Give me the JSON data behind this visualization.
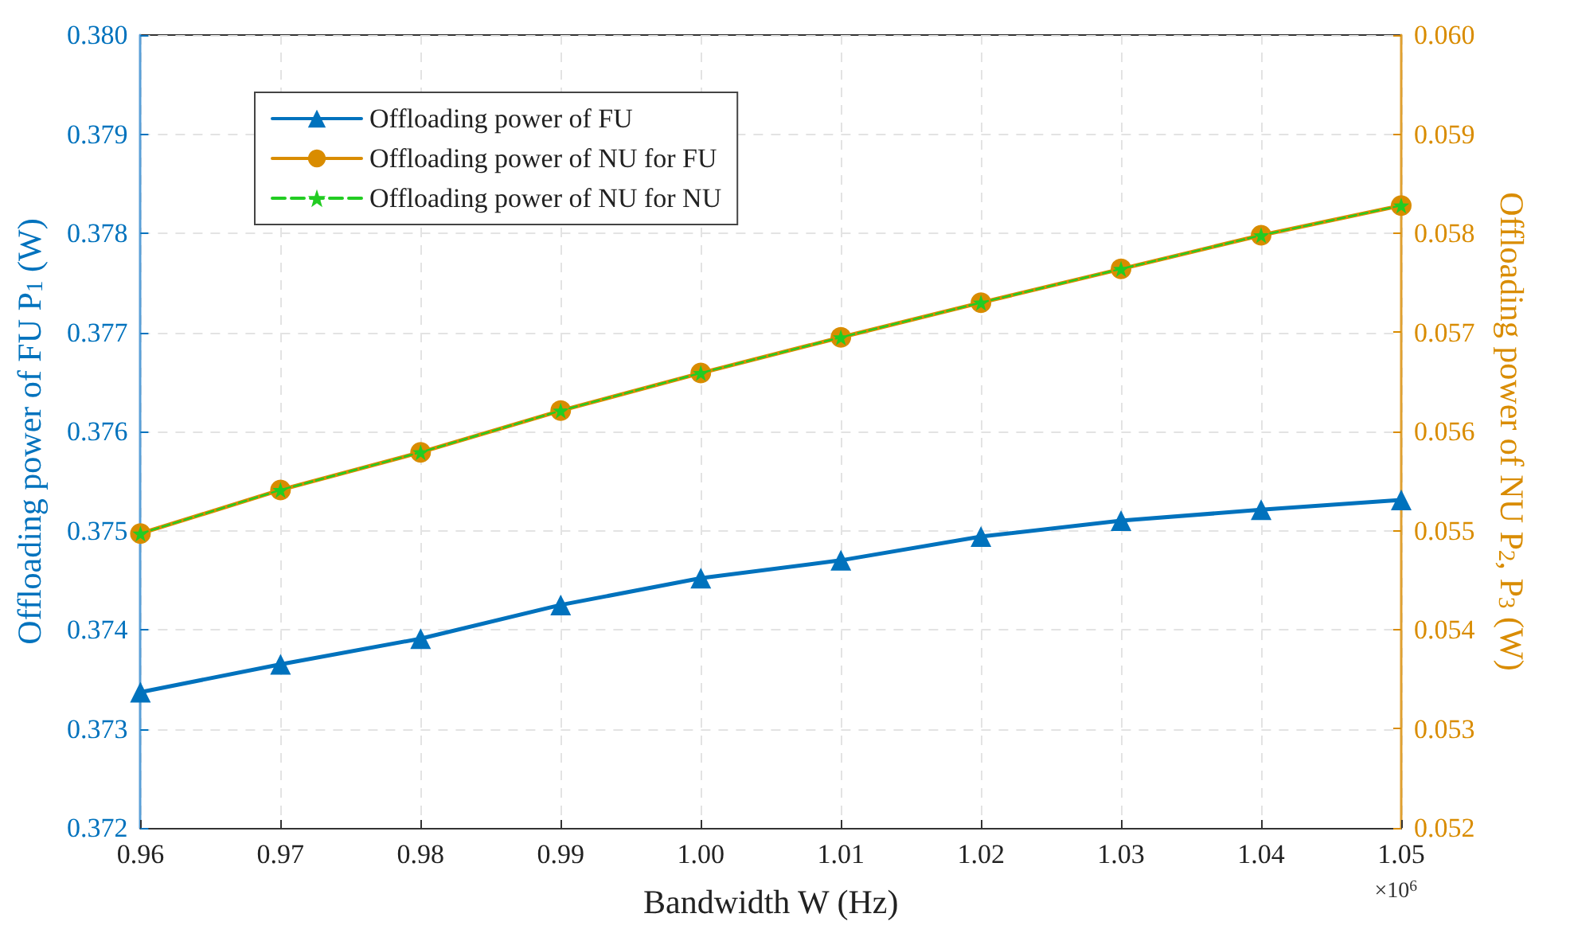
{
  "chart_data": {
    "type": "line",
    "xlabel": "Bandwidth W (Hz)",
    "ylabel": "Offloading power of FU P$_{1}$ (W)",
    "y2label": "Offloading power of NU P$_{2}$, P$_{3}$ (W)",
    "annotations": [
      "×10$^{6}$"
    ],
    "x": [
      0.96,
      0.97,
      0.98,
      0.99,
      1.0,
      1.01,
      1.02,
      1.03,
      1.04,
      1.05
    ],
    "series": [
      {
        "name": "Offloading power of FU",
        "color": "#0072bd",
        "marker": "triangle",
        "line_style": "solid",
        "values": [
          0.37337,
          0.37365,
          0.37391,
          0.37425,
          0.37452,
          0.3747,
          0.37494,
          0.3751,
          0.37521,
          0.37531
        ]
      },
      {
        "name": "Offloading power of NU for FU",
        "color": "#d98c00",
        "marker": "circle",
        "line_style": "solid",
        "axis": "y2",
        "values": [
          0.05497,
          0.05541,
          0.05579,
          0.05621,
          0.05659,
          0.05695,
          0.0573,
          0.05764,
          0.05798,
          0.05828
        ]
      },
      {
        "name": "Offloading power of NU for NU",
        "color": "#22cc22",
        "marker": "star",
        "line_style": "dashed",
        "axis": "y2",
        "values": [
          0.05497,
          0.05541,
          0.05579,
          0.05621,
          0.05659,
          0.05695,
          0.0573,
          0.05764,
          0.05798,
          0.05828
        ]
      }
    ],
    "xlim": [
      0.96,
      1.05
    ],
    "xticks": [
      0.96,
      0.97,
      0.98,
      0.99,
      {
        "value": 1.0,
        "label": "1.00"
      },
      1.01,
      1.02,
      1.03,
      1.04,
      1.05
    ],
    "ylim": [
      0.372,
      0.38
    ],
    "yticks": [
      0.372,
      0.373,
      0.374,
      0.375,
      0.376,
      0.377,
      0.378,
      0.379,
      {
        "value": 0.38,
        "label": "0.380"
      }
    ],
    "y2lim": [
      0.052,
      0.06
    ],
    "y2ticks": [
      0.052,
      0.053,
      0.054,
      0.055,
      0.056,
      0.057,
      0.058,
      0.059,
      {
        "value": 0.06,
        "label": "0.060"
      }
    ],
    "grid": true,
    "legend": "top left"
  }
}
